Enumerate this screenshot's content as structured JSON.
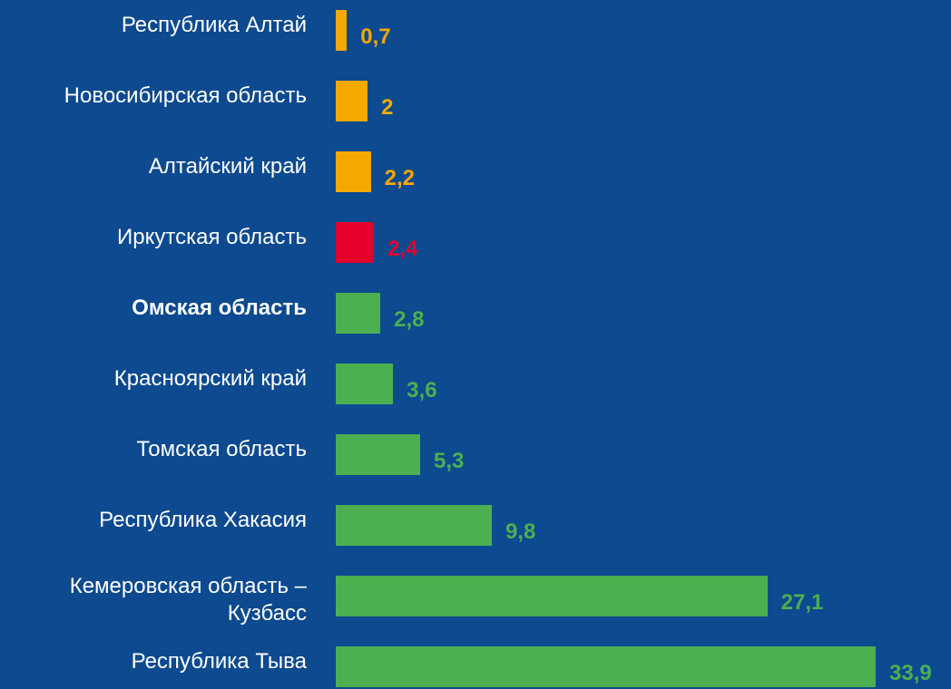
{
  "chart_data": {
    "type": "barh",
    "categories": [
      "Республика Алтай",
      "Новосибирская область",
      "Алтайский край",
      "Иркутская область",
      "Омская область",
      "Красноярский край",
      "Томская область",
      "Республика Хакасия",
      "Кемеровская область –\nКузбасс",
      "Республика Тыва"
    ],
    "values": [
      0.7,
      2,
      2.2,
      2.4,
      2.8,
      3.6,
      5.3,
      9.8,
      27.1,
      33.9
    ],
    "value_labels": [
      "0,7",
      "2",
      "2,2",
      "2,4",
      "2,8",
      "3,6",
      "5,3",
      "9,8",
      "27,1",
      "33,9"
    ],
    "colors": [
      "#f5a800",
      "#f5a800",
      "#f5a800",
      "#e4002b",
      "#4caf50",
      "#4caf50",
      "#4caf50",
      "#4caf50",
      "#4caf50",
      "#4caf50"
    ]
  }
}
